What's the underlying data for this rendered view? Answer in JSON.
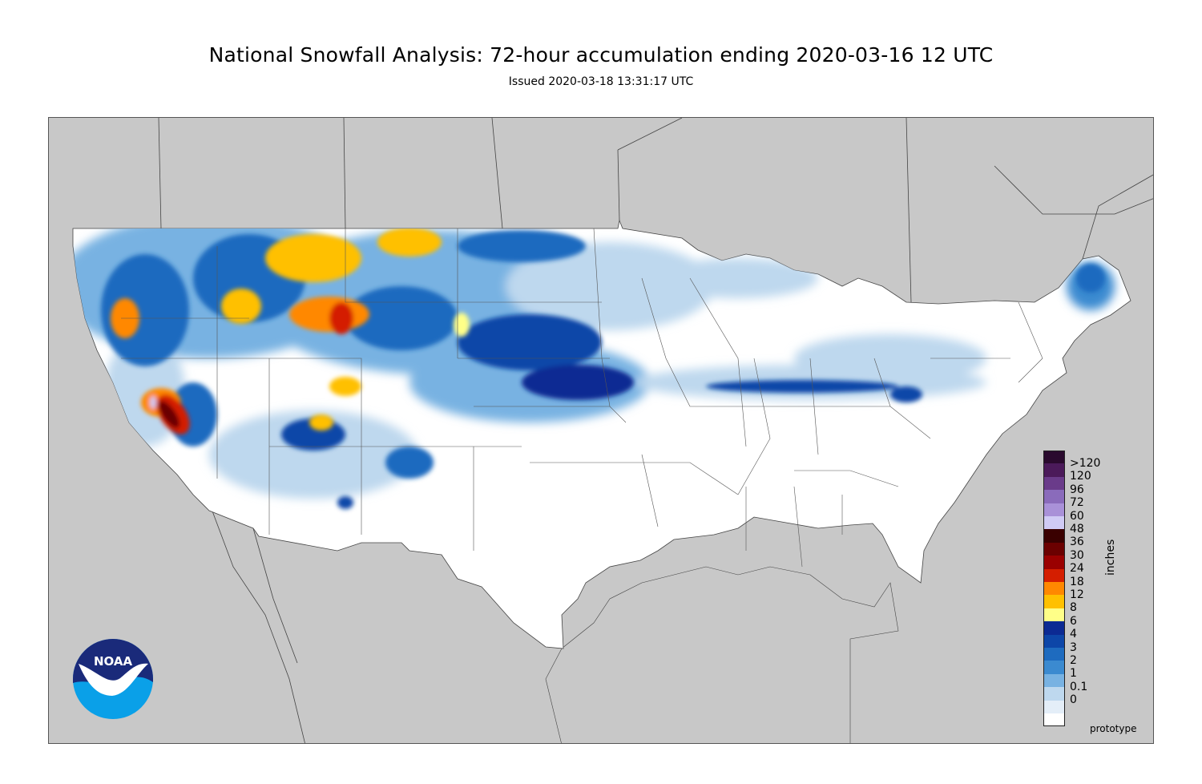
{
  "title": "National Snowfall Analysis: 72-hour accumulation ending 2020-03-16 12 UTC",
  "subtitle": "Issued 2020-03-18 13:31:17 UTC",
  "logo_text": "NOAA",
  "footer_note": "prototype",
  "legend": {
    "units": "inches",
    "bins": [
      {
        "label": ">120",
        "color": "#2a0a2e"
      },
      {
        "label": "120",
        "color": "#4b1a5a"
      },
      {
        "label": "96",
        "color": "#6a3b8a"
      },
      {
        "label": "72",
        "color": "#8a6bbb"
      },
      {
        "label": "60",
        "color": "#a991d8"
      },
      {
        "label": "48",
        "color": "#d0cbf5"
      },
      {
        "label": "36",
        "color": "#3a0000"
      },
      {
        "label": "30",
        "color": "#6b0000"
      },
      {
        "label": "24",
        "color": "#9a0000"
      },
      {
        "label": "18",
        "color": "#d41e00"
      },
      {
        "label": "12",
        "color": "#ff8800"
      },
      {
        "label": "8",
        "color": "#ffc000"
      },
      {
        "label": "6",
        "color": "#ffff88"
      },
      {
        "label": "4",
        "color": "#0c2a93"
      },
      {
        "label": "3",
        "color": "#0d46a8"
      },
      {
        "label": "2",
        "color": "#1e6bbf"
      },
      {
        "label": "1",
        "color": "#3b8ad0"
      },
      {
        "label": "0.1",
        "color": "#78b2e2"
      },
      {
        "label": "0",
        "color": "#bed8ee"
      }
    ],
    "bottom_bins": [
      {
        "color": "#e4eef8"
      },
      {
        "color": "#ffffff"
      }
    ]
  },
  "colors": {
    "background_gray": "#c8c8c8",
    "land_white": "#ffffff",
    "light_blue": "#bed8ee",
    "mid_blue": "#3b8ad0",
    "dark_blue": "#0c2a93",
    "yellow": "#ffc000",
    "orange": "#ff8800",
    "red": "#d41e00",
    "dark_red": "#6b0000",
    "lavender": "#d0cbf5",
    "noaa_navy": "#1a2a7a",
    "noaa_cyan": "#0aa0e8"
  }
}
